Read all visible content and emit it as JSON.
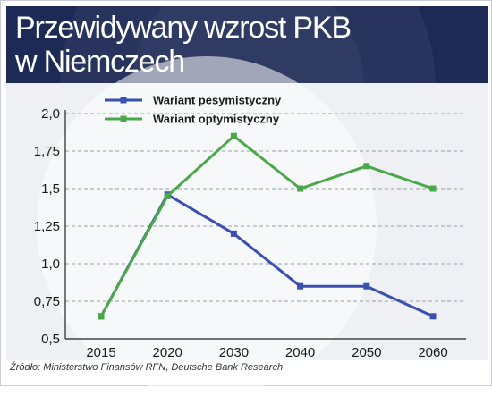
{
  "header": {
    "title_line1": "Przewidywany wzrost PKB",
    "title_line2": "w Niemczech"
  },
  "source": "Źródło: Ministerstwo Finansów RFN, Deutsche Bank Research",
  "colors": {
    "header_bg": "#1d2a55",
    "pesymistyczny": "#3a4fb0",
    "optymistyczny": "#4aa84a"
  },
  "chart_data": {
    "type": "line",
    "categories": [
      "2015",
      "2020",
      "2030",
      "2040",
      "2050",
      "2060"
    ],
    "ylim": [
      0.5,
      2.0
    ],
    "yticks": [
      0.5,
      0.75,
      1.0,
      1.25,
      1.5,
      1.75,
      2.0
    ],
    "ytick_labels": [
      "0,5",
      "0,75",
      "1,0",
      "1,25",
      "1,5",
      "1,75",
      "2,0"
    ],
    "grid": true,
    "legend_position": "top-left",
    "series": [
      {
        "name": "Wariant pesymistyczny",
        "values": [
          0.65,
          1.46,
          1.2,
          0.85,
          0.85,
          0.65
        ]
      },
      {
        "name": "Wariant optymistyczny",
        "values": [
          0.65,
          1.45,
          1.85,
          1.5,
          1.65,
          1.5
        ]
      }
    ]
  }
}
